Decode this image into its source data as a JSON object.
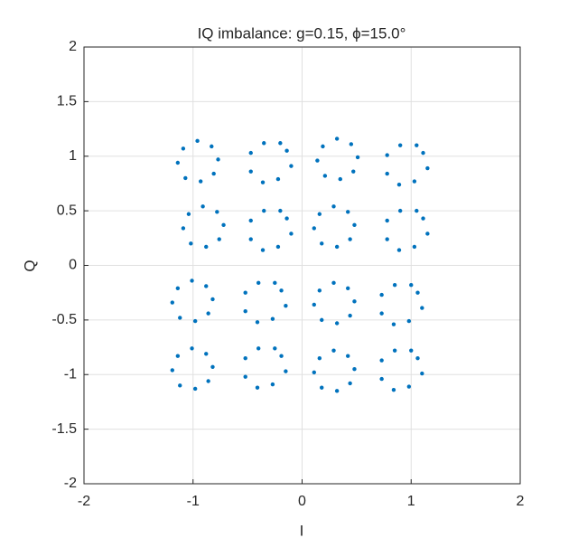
{
  "chart_data": {
    "type": "scatter",
    "title": "IQ imbalance: g=0.15, ϕ=15.0°",
    "x_label": "I",
    "y_label": "Q",
    "xlim": [
      -2,
      2
    ],
    "ylim": [
      -2,
      2
    ],
    "xticks": [
      -2,
      -1,
      0,
      1,
      2
    ],
    "yticks": [
      -2,
      -1.5,
      -1,
      -0.5,
      0,
      0.5,
      1,
      1.5,
      2
    ],
    "grid": true,
    "series": [
      {
        "color": "#0072bd",
        "x": [
          -0.77,
          -0.83,
          -0.96,
          -1.09,
          -1.14,
          -1.07,
          -0.93,
          -0.81,
          -0.1,
          -0.2,
          -0.35,
          -0.47,
          -0.47,
          -0.36,
          -0.22,
          -0.14,
          0.51,
          0.45,
          0.32,
          0.19,
          0.14,
          0.21,
          0.35,
          0.47,
          1.15,
          1.05,
          0.9,
          0.78,
          0.78,
          0.89,
          1.03,
          1.11,
          -0.72,
          -0.78,
          -0.91,
          -1.04,
          -1.09,
          -1.02,
          -0.88,
          -0.76,
          -0.1,
          -0.2,
          -0.35,
          -0.47,
          -0.47,
          -0.36,
          -0.22,
          -0.14,
          0.48,
          0.42,
          0.29,
          0.16,
          0.11,
          0.18,
          0.32,
          0.44,
          1.15,
          1.05,
          0.9,
          0.78,
          0.78,
          0.89,
          1.03,
          1.11,
          -0.82,
          -0.88,
          -1.01,
          -1.14,
          -1.19,
          -1.12,
          -0.98,
          -0.86,
          -0.15,
          -0.25,
          -0.4,
          -0.52,
          -0.52,
          -0.41,
          -0.27,
          -0.19,
          0.48,
          0.42,
          0.29,
          0.16,
          0.11,
          0.18,
          0.32,
          0.44,
          1.1,
          1.0,
          0.85,
          0.73,
          0.73,
          0.84,
          0.98,
          1.06,
          -0.82,
          -0.88,
          -1.01,
          -1.14,
          -1.19,
          -1.12,
          -0.98,
          -0.86,
          -0.15,
          -0.25,
          -0.4,
          -0.52,
          -0.52,
          -0.41,
          -0.27,
          -0.19,
          0.48,
          0.42,
          0.29,
          0.16,
          0.11,
          0.18,
          0.32,
          0.44,
          1.1,
          1.0,
          0.85,
          0.73,
          0.73,
          0.84,
          0.98,
          1.06
        ],
        "values": [
          0.97,
          1.09,
          1.14,
          1.07,
          0.94,
          0.8,
          0.77,
          0.84,
          0.91,
          1.12,
          1.12,
          1.03,
          0.86,
          0.76,
          0.79,
          1.05,
          0.99,
          1.11,
          1.16,
          1.09,
          0.96,
          0.82,
          0.79,
          0.86,
          0.89,
          1.1,
          1.1,
          1.01,
          0.84,
          0.74,
          0.77,
          1.03,
          0.37,
          0.49,
          0.54,
          0.47,
          0.34,
          0.2,
          0.17,
          0.24,
          0.29,
          0.5,
          0.5,
          0.41,
          0.24,
          0.14,
          0.17,
          0.43,
          0.37,
          0.49,
          0.54,
          0.47,
          0.34,
          0.2,
          0.17,
          0.24,
          0.29,
          0.5,
          0.5,
          0.41,
          0.24,
          0.14,
          0.17,
          0.43,
          -0.31,
          -0.19,
          -0.14,
          -0.21,
          -0.34,
          -0.48,
          -0.51,
          -0.44,
          -0.37,
          -0.16,
          -0.16,
          -0.25,
          -0.42,
          -0.52,
          -0.49,
          -0.23,
          -0.33,
          -0.21,
          -0.16,
          -0.23,
          -0.36,
          -0.5,
          -0.53,
          -0.46,
          -0.39,
          -0.18,
          -0.18,
          -0.27,
          -0.44,
          -0.54,
          -0.51,
          -0.25,
          -0.93,
          -0.81,
          -0.76,
          -0.83,
          -0.96,
          -1.1,
          -1.13,
          -1.06,
          -0.97,
          -0.76,
          -0.76,
          -0.85,
          -1.02,
          -1.12,
          -1.09,
          -0.83,
          -0.95,
          -0.83,
          -0.78,
          -0.85,
          -0.98,
          -1.12,
          -1.15,
          -1.08,
          -0.99,
          -0.78,
          -0.78,
          -0.87,
          -1.04,
          -1.14,
          -1.11,
          -0.85
        ]
      }
    ]
  }
}
